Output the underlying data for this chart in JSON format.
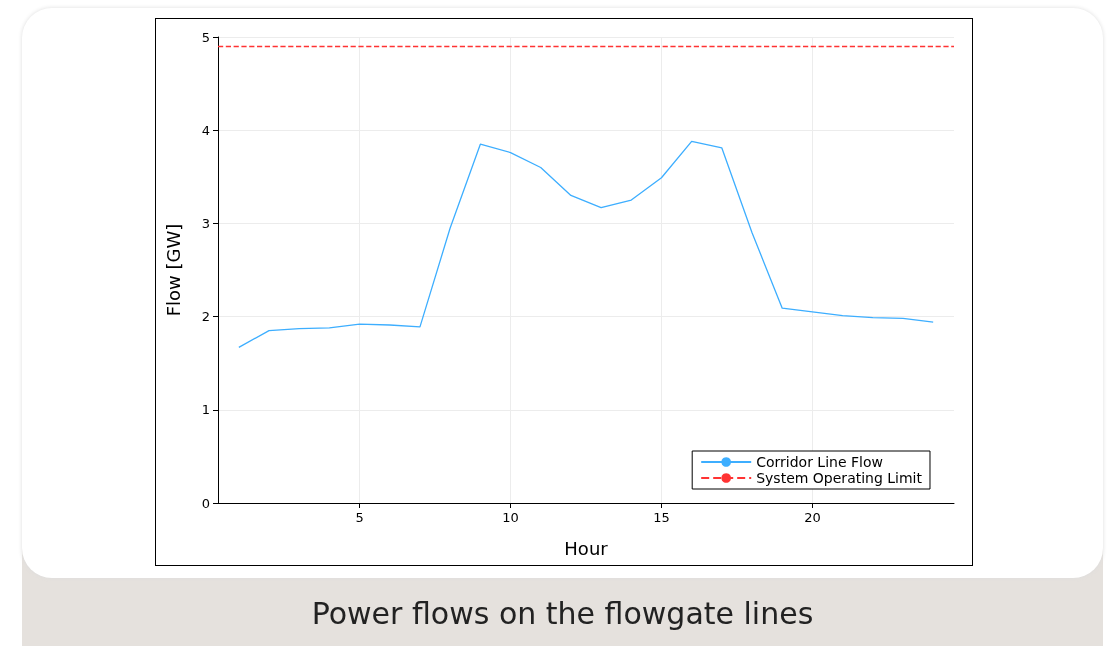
{
  "chart_data": {
    "type": "line",
    "xlabel": "Hour",
    "ylabel": "Flow [GW]",
    "x": [
      1,
      2,
      3,
      4,
      5,
      6,
      7,
      8,
      9,
      10,
      11,
      12,
      13,
      14,
      15,
      16,
      17,
      18,
      19,
      20,
      21,
      22,
      23,
      24
    ],
    "series": [
      {
        "name": "Corridor Line Flow",
        "color": "#3daeff",
        "values": [
          1.67,
          1.85,
          1.87,
          1.88,
          1.92,
          1.91,
          1.89,
          2.95,
          3.85,
          3.76,
          3.6,
          3.3,
          3.17,
          3.25,
          3.49,
          3.88,
          3.81,
          2.9,
          2.09,
          2.05,
          2.01,
          1.99,
          1.98,
          1.94
        ]
      }
    ],
    "ref_lines": [
      {
        "axis": "y",
        "value": 4.9,
        "label": "System Operating Limit",
        "color": "#ff3333",
        "line_style": "dashed"
      }
    ],
    "xlim": [
      0.31,
      24.69
    ],
    "xticks": [
      5,
      10,
      15,
      20
    ],
    "ylim": [
      0,
      5
    ],
    "yticks": [
      0,
      1,
      2,
      3,
      4,
      5
    ],
    "grid": true,
    "legend": "bottom right",
    "marker": "none",
    "line_style": "solid",
    "annotations": [
      "Power flows on the flowgate lines"
    ]
  }
}
